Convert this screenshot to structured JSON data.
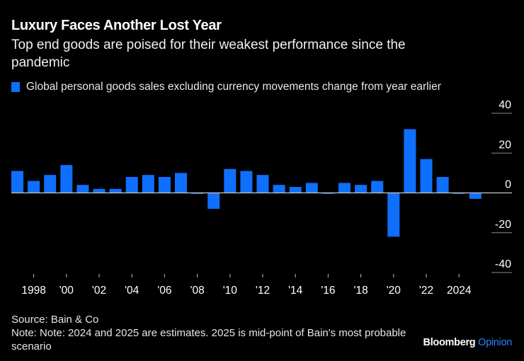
{
  "header": {
    "title": "Luxury Faces Another Lost Year",
    "subtitle": "Top end goods are poised for their weakest performance since the pandemic"
  },
  "legend": {
    "label": "Global personal goods sales excluding currency movements change from year earlier",
    "color": "#0f6fff"
  },
  "footer": {
    "source": "Source: Bain & Co",
    "note": "Note: Note: 2024 and 2025 are estimates. 2025 is mid-point of Bain's most probable scenario"
  },
  "brand": {
    "name": "Bloomberg",
    "suffix": "Opinion"
  },
  "chart_data": {
    "type": "bar",
    "title": "Luxury Faces Another Lost Year",
    "subtitle": "Top end goods are poised for their weakest performance since the pandemic",
    "xlabel": "",
    "ylabel": "",
    "categories": [
      "1997",
      "1998",
      "1999",
      "2000",
      "2001",
      "2002",
      "2003",
      "2004",
      "2005",
      "2006",
      "2007",
      "2008",
      "2009",
      "2010",
      "2011",
      "2012",
      "2013",
      "2014",
      "2015",
      "2016",
      "2017",
      "2018",
      "2019",
      "2020",
      "2021",
      "2022",
      "2023",
      "2024",
      "2025"
    ],
    "series": [
      {
        "name": "Global personal goods sales excluding currency movements change from year earlier",
        "color": "#0f6fff",
        "values": [
          11,
          6,
          9,
          14,
          4,
          2,
          2,
          8,
          9,
          8,
          10,
          -0.5,
          -8,
          12,
          11,
          9,
          4,
          3,
          5,
          -0.5,
          5,
          4,
          6,
          -22,
          32,
          17,
          8,
          -0.5,
          -3
        ]
      }
    ],
    "ylim": [
      -40,
      40
    ],
    "yticks": [
      40,
      20,
      0,
      -20,
      -40
    ],
    "ytick_labels": [
      "40",
      "20",
      "0",
      "-20",
      "-40"
    ],
    "xticks": [
      "1998",
      "2000",
      "2002",
      "2004",
      "2006",
      "2008",
      "2010",
      "2012",
      "2014",
      "2016",
      "2018",
      "2020",
      "2022",
      "2024"
    ],
    "xtick_labels": [
      "1998",
      "'00",
      "'02",
      "'04",
      "'06",
      "'08",
      "'10",
      "'12",
      "'14",
      "'16",
      "'18",
      "'20",
      "'22",
      "2024"
    ],
    "y_axis_side": "right",
    "grid": true,
    "legend_position": "top-left"
  }
}
